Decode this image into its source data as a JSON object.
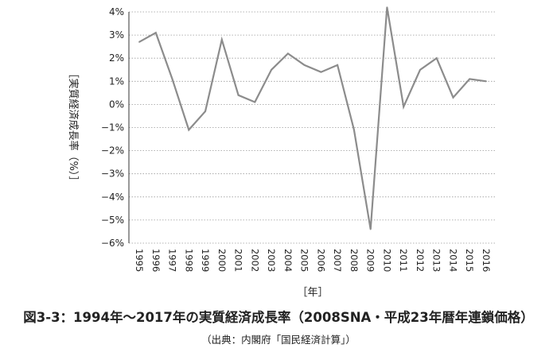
{
  "chart_data": {
    "type": "line",
    "title": "図3-3：1994年〜2017年の実質経済成長率（2008SNA・平成23年暦年連鎖価格）",
    "source": "（出典：内閣府「国民経済計算」）",
    "ylabel": "［実質経済成長率（%）］",
    "xlabel": "［年］",
    "ylim": [
      -6,
      4
    ],
    "yticks": [
      "4%",
      "3%",
      "2%",
      "1%",
      "0%",
      "−1%",
      "−2%",
      "−3%",
      "−4%",
      "−5%",
      "−6%"
    ],
    "grid": true,
    "x": [
      "1995",
      "1996",
      "1997",
      "1998",
      "1999",
      "2000",
      "2001",
      "2002",
      "2003",
      "2004",
      "2005",
      "2006",
      "2007",
      "2008",
      "2009",
      "2010",
      "2011",
      "2012",
      "2013",
      "2014",
      "2015",
      "2016"
    ],
    "series": [
      {
        "color": "#8c8c8c",
        "values": [
          2.7,
          3.1,
          1.1,
          -1.1,
          -0.3,
          2.8,
          0.4,
          0.1,
          1.5,
          2.2,
          1.7,
          1.4,
          1.7,
          -1.1,
          -5.4,
          4.2,
          -0.1,
          1.5,
          2.0,
          0.3,
          1.1,
          1.0
        ]
      }
    ]
  }
}
